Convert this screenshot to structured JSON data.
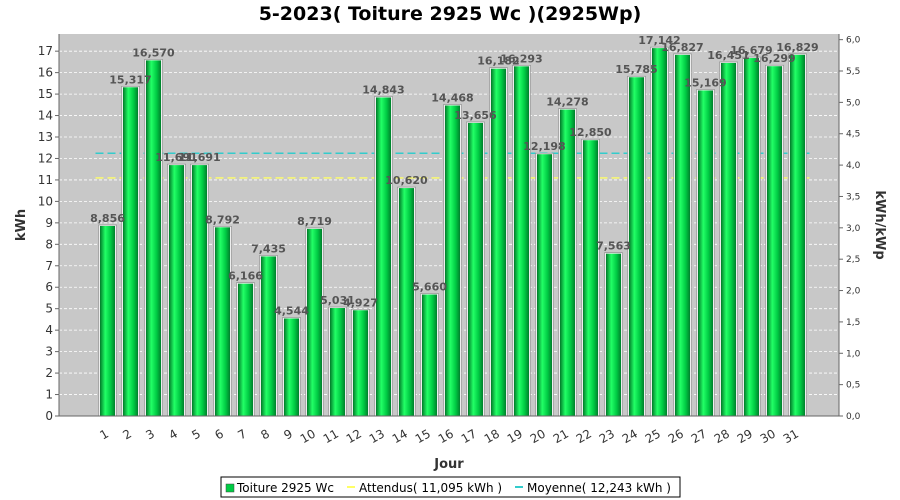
{
  "chart_data": {
    "type": "bar",
    "title": "5-2023( Toiture 2925 Wc )(2925Wp)",
    "xlabel": "Jour",
    "ylabel": "kWh",
    "y2label": "kWh/kWp",
    "ylim": [
      0,
      17.8
    ],
    "y2lim": [
      0,
      6.09
    ],
    "yticks": [
      "0",
      "1",
      "2",
      "3",
      "4",
      "5",
      "6",
      "7",
      "8",
      "9",
      "10",
      "11",
      "12",
      "13",
      "14",
      "15",
      "16",
      "17"
    ],
    "y2ticks": [
      "0,0",
      "0,5",
      "1,0",
      "1,5",
      "2,0",
      "2,5",
      "3,0",
      "3,5",
      "4,0",
      "4,5",
      "5,0",
      "5,5",
      "6,0"
    ],
    "categories": [
      "1",
      "2",
      "3",
      "4",
      "5",
      "6",
      "7",
      "8",
      "9",
      "10",
      "11",
      "12",
      "13",
      "14",
      "15",
      "16",
      "17",
      "18",
      "19",
      "20",
      "21",
      "22",
      "23",
      "24",
      "25",
      "26",
      "27",
      "28",
      "29",
      "30",
      "31"
    ],
    "series": [
      {
        "name": "Toiture 2925 Wc",
        "color": "#00cc44",
        "values": [
          8.856,
          15.317,
          16.57,
          11.691,
          11.691,
          8.792,
          6.166,
          7.435,
          4.544,
          8.719,
          5.031,
          4.927,
          14.843,
          10.62,
          5.66,
          14.468,
          13.656,
          16.182,
          16.293,
          12.198,
          14.278,
          12.85,
          7.563,
          15.785,
          17.142,
          16.827,
          15.169,
          16.451,
          16.679,
          16.299,
          16.829
        ],
        "labels": [
          "8,856",
          "15,317",
          "16,570",
          "11,691",
          "11,691",
          "8,792",
          "6,166",
          "7,435",
          "4,544",
          "8,719",
          "5,031",
          "4,927",
          "14,843",
          "10,620",
          "5,660",
          "14,468",
          "13,656",
          "16,182",
          "16,293",
          "12,198",
          "14,278",
          "12,850",
          "7,563",
          "15,785",
          "17,142",
          "16,827",
          "15,169",
          "16,451",
          "16,679",
          "16,299",
          "16,829"
        ]
      }
    ],
    "reference_lines": [
      {
        "name": "Attendus( 11,095 kWh )",
        "value": 11.095,
        "color": "#ffff66",
        "style": "dashed"
      },
      {
        "name": "Moyenne( 12,243 kWh )",
        "value": 12.243,
        "color": "#33cccc",
        "style": "dashed"
      }
    ],
    "grid": true,
    "legend_position": "bottom-center",
    "plot_background": "#c8c8c8"
  },
  "legend": {
    "items": [
      {
        "label": "Toiture 2925 Wc",
        "color": "#00cc44",
        "kind": "square"
      },
      {
        "label": "Attendus( 11,095 kWh )",
        "color": "#ffff66",
        "kind": "line"
      },
      {
        "label": "Moyenne( 12,243 kWh )",
        "color": "#33cccc",
        "kind": "line"
      }
    ]
  }
}
